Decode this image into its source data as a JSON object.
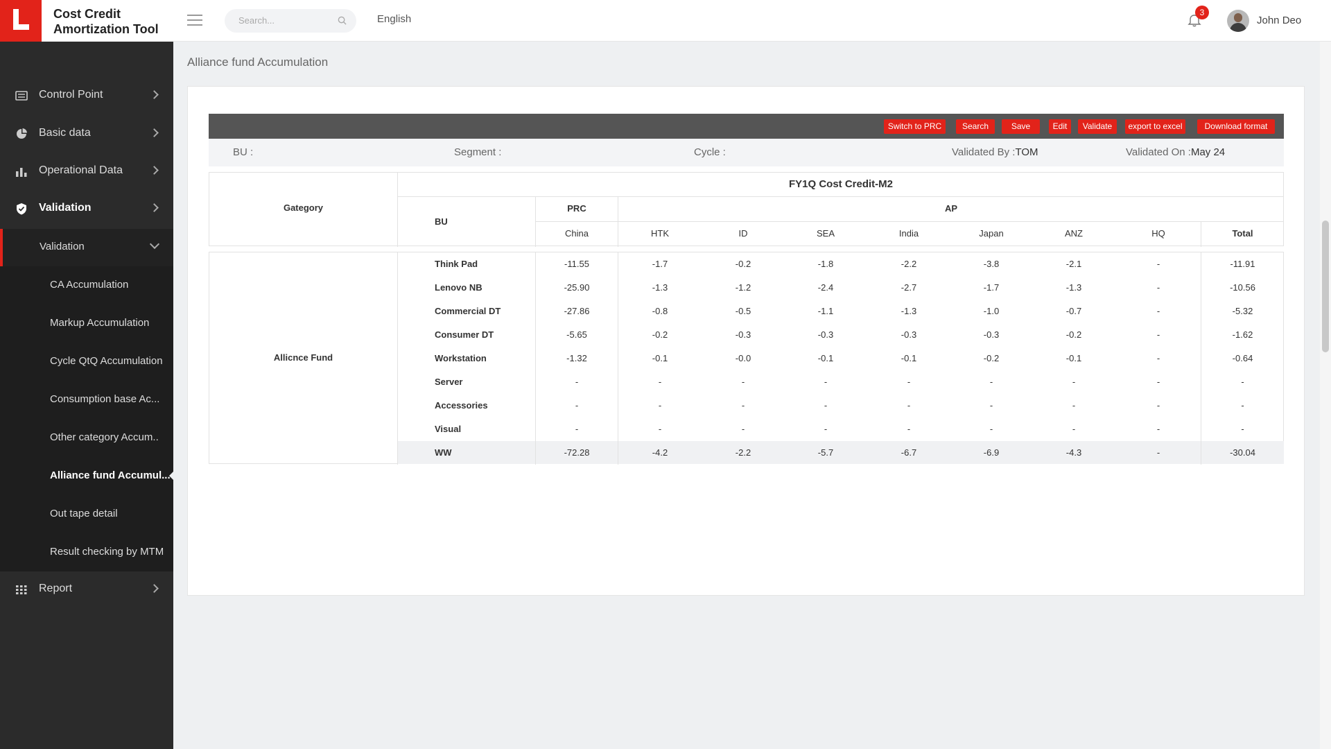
{
  "app": {
    "title": "Cost Credit Amortization Tool",
    "search_placeholder": "Search...",
    "language": "English",
    "notifications": "3",
    "user_name": "John Deo",
    "accent_color": "#e2231a"
  },
  "sidebar": {
    "items": [
      {
        "label": "Control Point",
        "icon": "list-icon"
      },
      {
        "label": "Basic data",
        "icon": "pie-chart-icon"
      },
      {
        "label": "Operational Data",
        "icon": "bar-chart-icon"
      },
      {
        "label": "Validation",
        "icon": "shield-check-icon"
      },
      {
        "label": "Report",
        "icon": "grid-icon"
      }
    ],
    "sub": {
      "label": "Validation"
    },
    "leaves": [
      "CA Accumulation",
      "Markup Accumulation",
      "Cycle QtQ Accumulation",
      "Consumption base Ac...",
      "Other category Accum..",
      "Alliance fund Accumul...",
      "Out tape detail",
      "Result checking by MTM"
    ]
  },
  "page": {
    "title": "Alliance fund Accumulation"
  },
  "toolbar": {
    "buttons": [
      "Switch to PRC",
      "Search",
      "Save",
      "Edit",
      "Validate",
      "export to excel",
      "Download format"
    ]
  },
  "filters": {
    "bu_label": "BU :",
    "segment_label": "Segment :",
    "cycle_label": "Cycle :",
    "validated_by_label": "Validated By :",
    "validated_by_value": "TOM",
    "validated_on_label": "Validated On :",
    "validated_on_value": "May 24"
  },
  "table": {
    "title": "FY1Q Cost Credit-M2",
    "category_header": "Gategory",
    "bu_header": "BU",
    "region_prc": "PRC",
    "region_ap": "AP",
    "columns": [
      "China",
      "HTK",
      "ID",
      "SEA",
      "India",
      "Japan",
      "ANZ",
      "HQ",
      "Total"
    ],
    "category": "Allicnce Fund",
    "rows": [
      {
        "bu": "Think Pad",
        "values": [
          "-11.55",
          "-1.7",
          "-0.2",
          "-1.8",
          "-2.2",
          "-3.8",
          "-2.1",
          "-",
          "-11.91"
        ]
      },
      {
        "bu": "Lenovo NB",
        "values": [
          "-25.90",
          "-1.3",
          "-1.2",
          "-2.4",
          "-2.7",
          "-1.7",
          "-1.3",
          "-",
          "-10.56"
        ]
      },
      {
        "bu": "Commercial DT",
        "values": [
          "-27.86",
          "-0.8",
          "-0.5",
          "-1.1",
          "-1.3",
          "-1.0",
          "-0.7",
          "-",
          "-5.32"
        ]
      },
      {
        "bu": "Consumer DT",
        "values": [
          "-5.65",
          "-0.2",
          "-0.3",
          "-0.3",
          "-0.3",
          "-0.3",
          "-0.2",
          "-",
          "-1.62"
        ]
      },
      {
        "bu": "Workstation",
        "values": [
          "-1.32",
          "-0.1",
          "-0.0",
          "-0.1",
          "-0.1",
          "-0.2",
          "-0.1",
          "-",
          "-0.64"
        ]
      },
      {
        "bu": "Server",
        "values": [
          "-",
          "-",
          "-",
          "-",
          "-",
          "-",
          "-",
          "-",
          "-"
        ]
      },
      {
        "bu": "Accessories",
        "values": [
          "-",
          "-",
          "-",
          "-",
          "-",
          "-",
          "-",
          "-",
          "-"
        ]
      },
      {
        "bu": "Visual",
        "values": [
          "-",
          "-",
          "-",
          "-",
          "-",
          "-",
          "-",
          "-",
          "-"
        ]
      },
      {
        "bu": "WW",
        "values": [
          "-72.28",
          "-4.2",
          "-2.2",
          "-5.7",
          "-6.7",
          "-6.9",
          "-4.3",
          "-",
          "-30.04"
        ]
      }
    ]
  }
}
